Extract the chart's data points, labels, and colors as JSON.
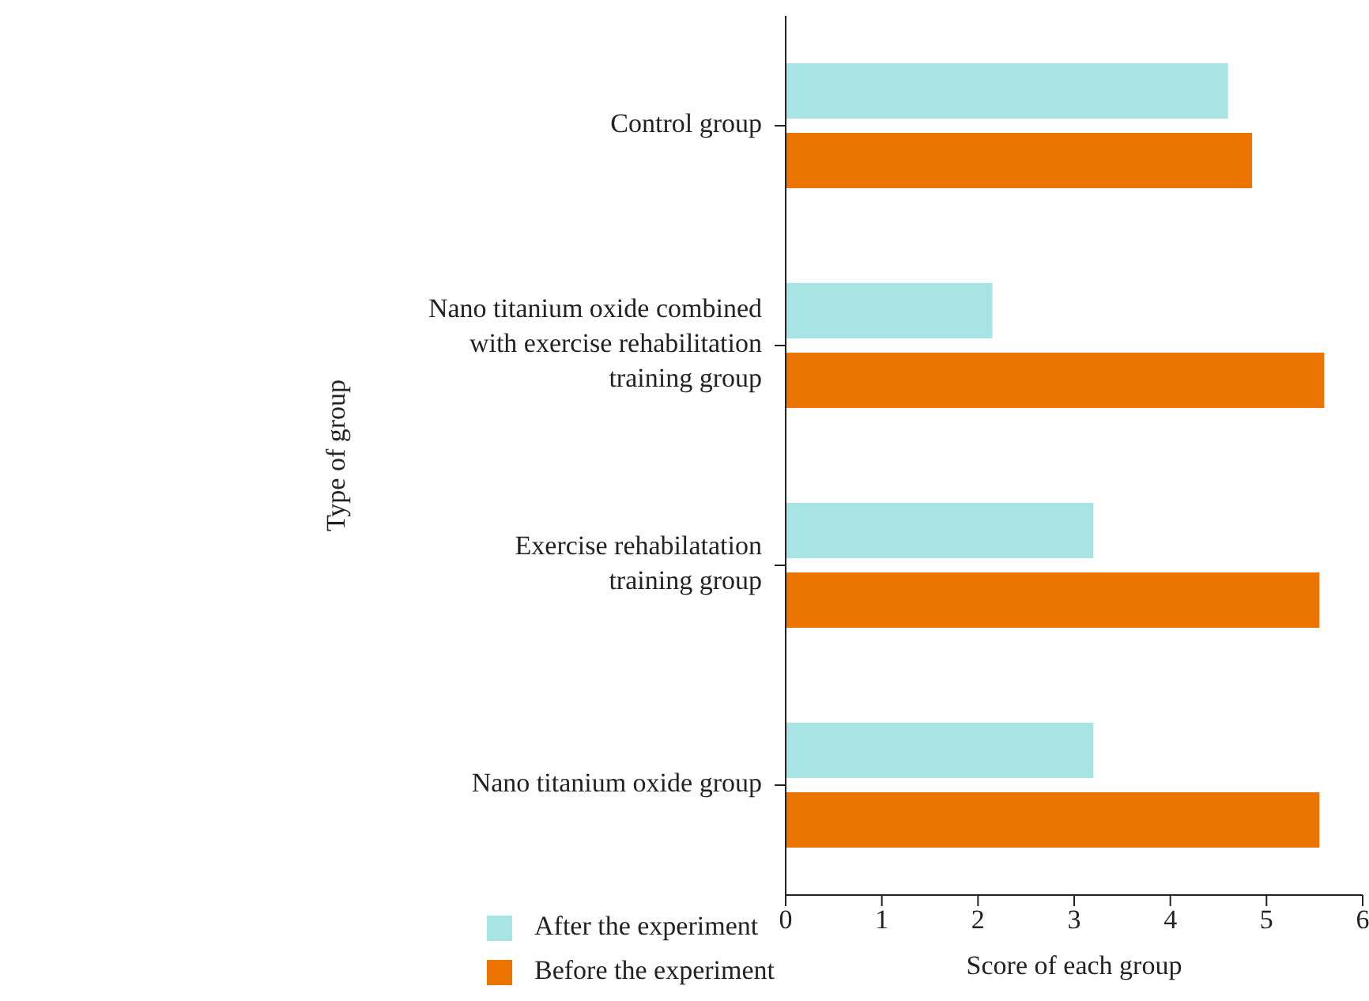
{
  "chart_data": {
    "type": "bar",
    "orientation": "horizontal",
    "ylabel": "Type of group",
    "xlabel": "Score of each group",
    "categories": [
      "Control group",
      "Nano titanium oxide combined with exercise rehabilitation training group",
      "Exercise rehabilatation training group",
      "Nano titanium oxide group"
    ],
    "series": [
      {
        "name": "After the experiment",
        "color": "#a8e4e4",
        "values": [
          4.6,
          2.15,
          3.2,
          3.2
        ]
      },
      {
        "name": "Before the experiment",
        "color": "#ec7400",
        "values": [
          4.85,
          5.6,
          5.55,
          5.55
        ]
      }
    ],
    "xlim": [
      0,
      6
    ],
    "xticks": [
      0,
      1,
      2,
      3,
      4,
      5,
      6
    ],
    "grid": false,
    "legend": "bottom"
  }
}
